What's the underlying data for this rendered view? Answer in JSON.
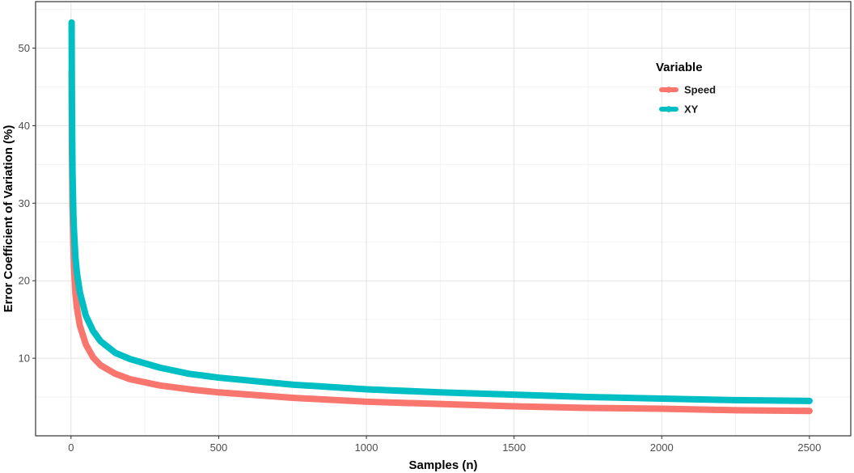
{
  "chart_data": {
    "type": "line",
    "xlabel": "Samples (n)",
    "ylabel": "Error Coefficient of Variation (%)",
    "xlim": [
      -120,
      2640
    ],
    "ylim": [
      0,
      56
    ],
    "x_ticks": [
      0,
      500,
      1000,
      1500,
      2000,
      2500
    ],
    "y_ticks": [
      10,
      20,
      30,
      40,
      50
    ],
    "grid": true,
    "legend": {
      "title": "Variable",
      "position": "top-right"
    },
    "series": [
      {
        "name": "Speed",
        "color": "#F8766D",
        "x": [
          2,
          3,
          5,
          8,
          10,
          15,
          20,
          30,
          50,
          75,
          100,
          150,
          200,
          300,
          400,
          500,
          750,
          1000,
          1250,
          1500,
          1750,
          2000,
          2250,
          2500
        ],
        "y": [
          47.0,
          37.5,
          29.5,
          24.5,
          21.8,
          18.3,
          16.5,
          14.2,
          11.8,
          10.1,
          9.1,
          8.0,
          7.3,
          6.5,
          6.0,
          5.6,
          4.9,
          4.4,
          4.1,
          3.8,
          3.6,
          3.5,
          3.3,
          3.2
        ]
      },
      {
        "name": "XY",
        "color": "#00BFC4",
        "x": [
          2,
          3,
          5,
          8,
          10,
          15,
          20,
          30,
          50,
          75,
          100,
          150,
          200,
          300,
          400,
          500,
          750,
          1000,
          1250,
          1500,
          1750,
          2000,
          2250,
          2500
        ],
        "y": [
          53.3,
          43.0,
          34.0,
          28.5,
          26.5,
          23.0,
          21.0,
          18.5,
          15.5,
          13.5,
          12.2,
          10.7,
          9.9,
          8.8,
          8.0,
          7.5,
          6.6,
          6.0,
          5.6,
          5.3,
          5.0,
          4.8,
          4.6,
          4.5
        ]
      }
    ]
  }
}
